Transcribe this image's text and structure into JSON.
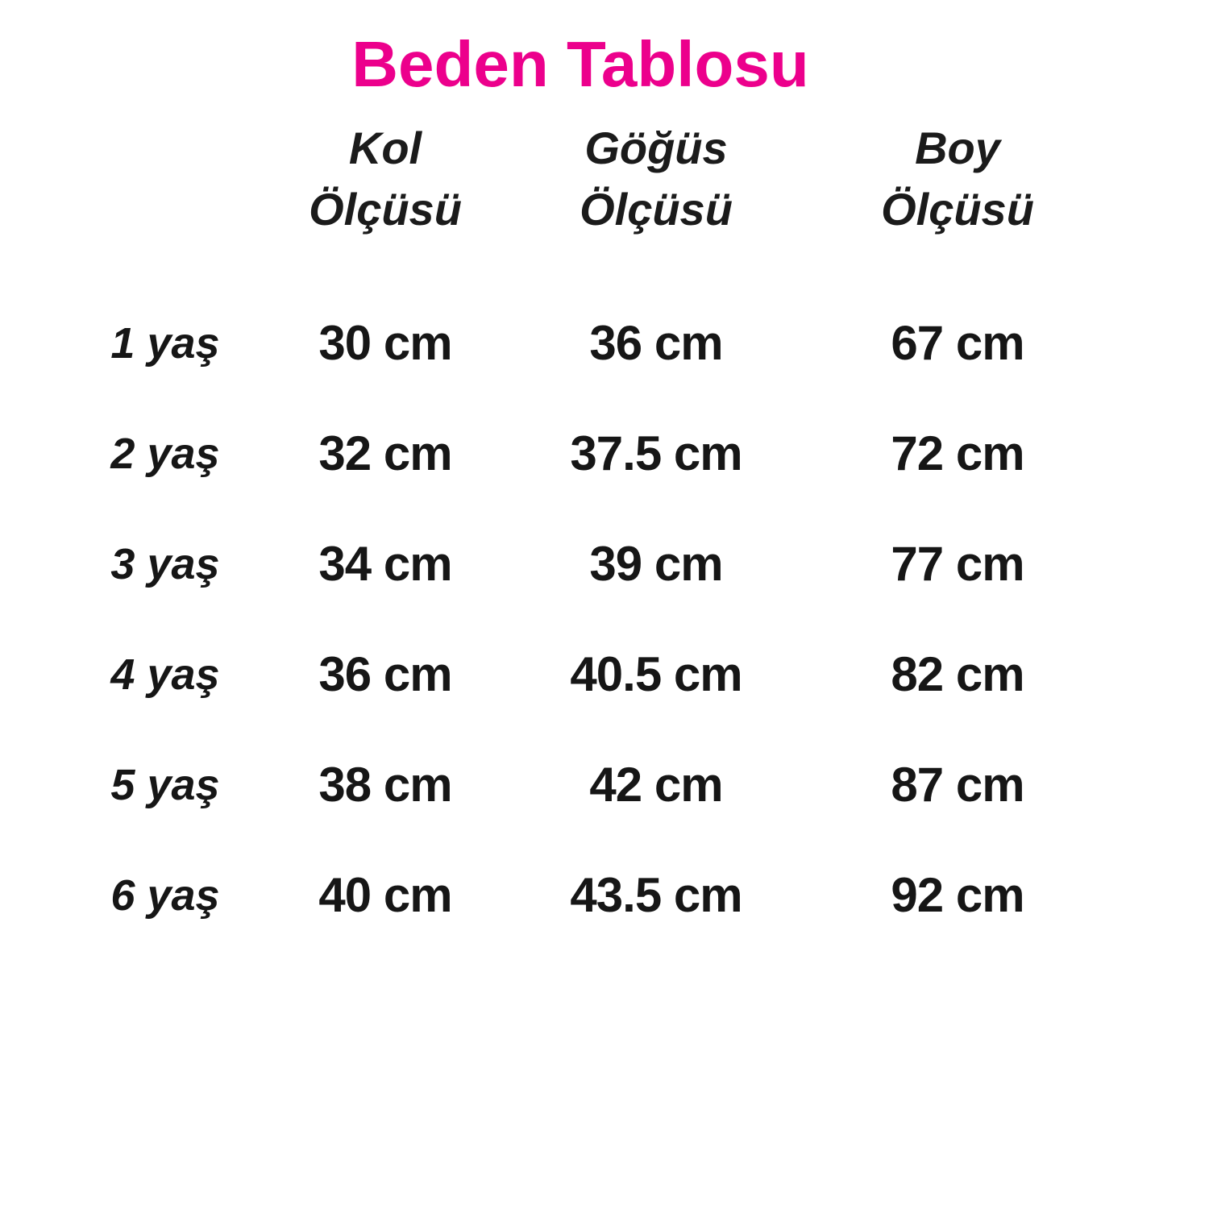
{
  "title": "Beden Tablosu",
  "title_color": "#EC008C",
  "table": {
    "columns": [
      {
        "line1": "Kol",
        "line2": "Ölçüsü"
      },
      {
        "line1": "Göğüs",
        "line2": "Ölçüsü"
      },
      {
        "line1": "Boy",
        "line2": "Ölçüsü"
      }
    ],
    "rows": [
      {
        "age": "1 yaş",
        "values": [
          "30 cm",
          "36 cm",
          "67 cm"
        ]
      },
      {
        "age": "2 yaş",
        "values": [
          "32 cm",
          "37.5 cm",
          "72 cm"
        ]
      },
      {
        "age": "3 yaş",
        "values": [
          "34 cm",
          "39 cm",
          "77 cm"
        ]
      },
      {
        "age": "4 yaş",
        "values": [
          "36 cm",
          "40.5 cm",
          "82 cm"
        ]
      },
      {
        "age": "5 yaş",
        "values": [
          "38 cm",
          "42 cm",
          "87 cm"
        ]
      },
      {
        "age": "6 yaş",
        "values": [
          "40 cm",
          "43.5 cm",
          "92 cm"
        ]
      }
    ]
  }
}
